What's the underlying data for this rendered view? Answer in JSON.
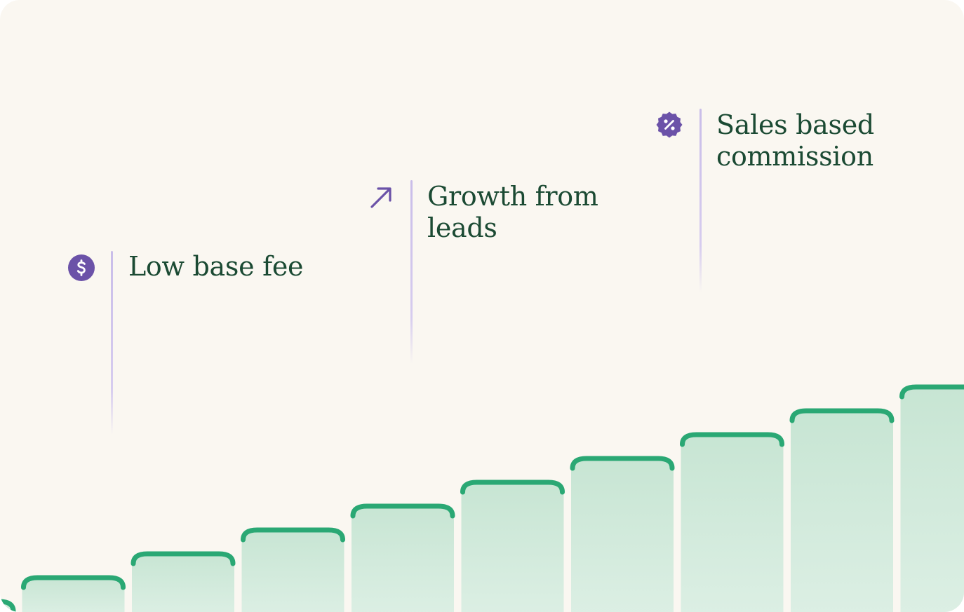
{
  "callouts": {
    "base_fee": {
      "label": "Low base fee",
      "icon": "dollar-coin-icon"
    },
    "growth": {
      "label_line1": "Growth from",
      "label_line2": "leads",
      "icon": "arrow-up-right-icon"
    },
    "commission": {
      "label_line1": "Sales based",
      "label_line2": "commission",
      "icon": "percent-badge-icon"
    }
  },
  "colors": {
    "background": "#faf7f1",
    "bar_fill_top": "#c7e5d3",
    "bar_fill_bottom": "#d9ede1",
    "bar_top_stroke": "#2aa874",
    "accent_purple": "#6b52a8",
    "text": "#1b4a33"
  },
  "chart_data": {
    "type": "bar",
    "values": [
      6,
      7,
      8,
      9,
      10,
      11,
      12,
      13,
      14,
      15
    ],
    "ylim": [
      0,
      16
    ]
  }
}
